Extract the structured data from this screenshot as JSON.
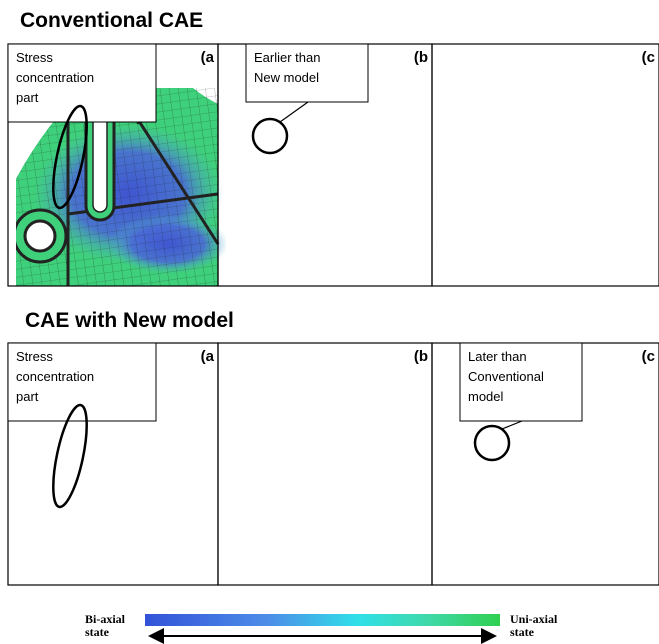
{
  "sections": [
    {
      "title": "Conventional CAE",
      "panels": [
        {
          "label": "(a",
          "callout": [
            "Stress",
            "concentration",
            "part"
          ]
        },
        {
          "label": "(b",
          "callout": [
            "Earlier than",
            "New model"
          ]
        },
        {
          "label": "(c"
        }
      ]
    },
    {
      "title": "CAE with New model",
      "panels": [
        {
          "label": "(a",
          "callout": [
            "Stress",
            "concentration",
            "part"
          ]
        },
        {
          "label": "(b"
        },
        {
          "label": "(c",
          "callout": [
            "Later than",
            "Conventional",
            "model"
          ]
        }
      ]
    }
  ],
  "legend": {
    "left": [
      "Bi-axial",
      "state"
    ],
    "right": [
      "Uni-axial",
      "state"
    ]
  }
}
